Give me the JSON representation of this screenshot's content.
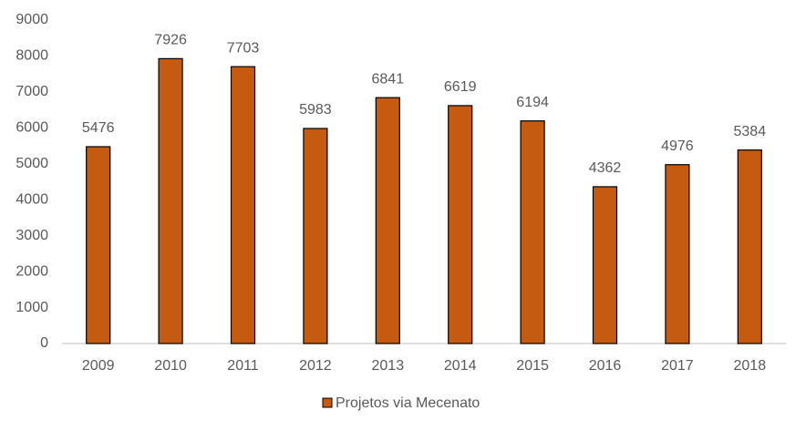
{
  "chart_data": {
    "type": "bar",
    "categories": [
      "2009",
      "2010",
      "2011",
      "2012",
      "2013",
      "2014",
      "2015",
      "2016",
      "2017",
      "2018"
    ],
    "series": [
      {
        "name": "Projetos via Mecenato",
        "color": "#c55a11",
        "values": [
          5476,
          7926,
          7703,
          5983,
          6841,
          6619,
          6194,
          4362,
          4976,
          5384
        ]
      }
    ],
    "ylim": [
      0,
      9000
    ],
    "yticks": [
      0,
      1000,
      2000,
      3000,
      4000,
      5000,
      6000,
      7000,
      8000,
      9000
    ],
    "grid": false,
    "data_labels": true,
    "legend": "bottom"
  }
}
